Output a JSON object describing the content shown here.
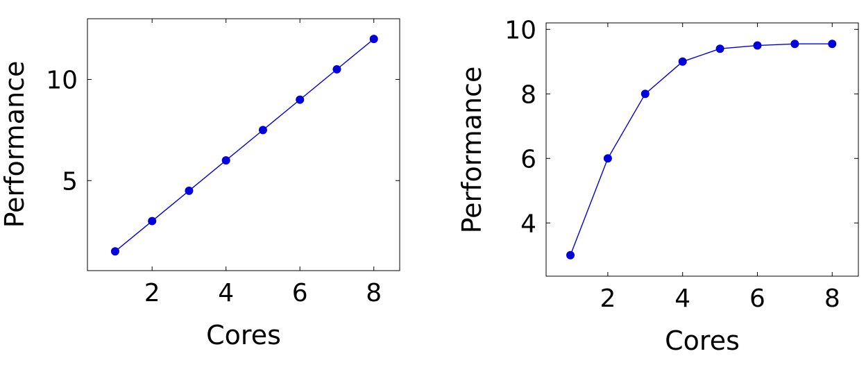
{
  "chart_data": [
    {
      "type": "line",
      "title": "",
      "xlabel": "Cores",
      "ylabel": "Performance",
      "x": [
        1,
        2,
        3,
        4,
        5,
        6,
        7,
        8
      ],
      "series": [
        {
          "values": [
            1.5,
            3.0,
            4.5,
            6.0,
            7.5,
            9.0,
            10.5,
            12.0
          ]
        }
      ],
      "xlim": [
        0.25,
        8.7
      ],
      "ylim": [
        0.55,
        13.0
      ],
      "xticks": [
        2,
        4,
        6,
        8
      ],
      "yticks": [
        5,
        10
      ],
      "grid": false,
      "legend": "none",
      "color": "#0000dd"
    },
    {
      "type": "line",
      "title": "",
      "xlabel": "Cores",
      "ylabel": "Performance",
      "x": [
        1,
        2,
        3,
        4,
        5,
        6,
        7,
        8
      ],
      "series": [
        {
          "values": [
            3.0,
            6.0,
            8.0,
            9.0,
            9.4,
            9.5,
            9.55,
            9.55
          ]
        }
      ],
      "xlim": [
        0.35,
        8.7
      ],
      "ylim": [
        2.35,
        10.2
      ],
      "xticks": [
        2,
        4,
        6,
        8
      ],
      "yticks": [
        4,
        6,
        8,
        10
      ],
      "grid": false,
      "legend": "none",
      "color": "#0000dd"
    }
  ]
}
